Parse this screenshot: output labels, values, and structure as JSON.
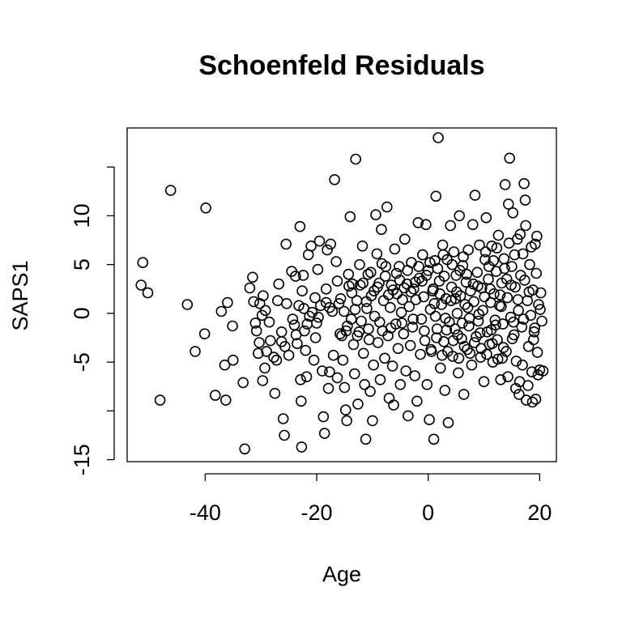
{
  "chart_data": {
    "type": "scatter",
    "title": "Schoenfeld Residuals",
    "xlabel": "Age",
    "ylabel": "SAPS1",
    "xlim": [
      -54,
      23
    ],
    "ylim": [
      -15.2,
      19
    ],
    "x_ticks": [
      -40,
      -20,
      0,
      20
    ],
    "x_tick_labels": [
      "-40",
      "-20",
      "0",
      "20"
    ],
    "y_ticks": [
      -15,
      -10,
      -5,
      0,
      5,
      10,
      15
    ],
    "y_tick_labels": [
      "-15",
      "",
      "-5",
      "0",
      "5",
      "10",
      ""
    ],
    "grid": false,
    "legend": "none",
    "marker": "open-circle",
    "colors": {
      "points": "#000000",
      "background": "#ffffff"
    },
    "points": [
      [
        -51.2,
        5.2
      ],
      [
        -51.5,
        2.9
      ],
      [
        -50.3,
        2.1
      ],
      [
        -48.1,
        -8.9
      ],
      [
        -46.2,
        12.6
      ],
      [
        -43.2,
        0.9
      ],
      [
        -41.8,
        -3.9
      ],
      [
        -40.1,
        -2.1
      ],
      [
        -39.9,
        10.8
      ],
      [
        -38.2,
        -8.4
      ],
      [
        -37.1,
        0.2
      ],
      [
        -36.5,
        -5.3
      ],
      [
        -36.0,
        1.1
      ],
      [
        -36.3,
        -8.9
      ],
      [
        -35.1,
        -1.3
      ],
      [
        -35.0,
        -4.8
      ],
      [
        -33.2,
        -7.1
      ],
      [
        -32.9,
        -13.9
      ],
      [
        -32.0,
        2.6
      ],
      [
        -31.5,
        3.7
      ],
      [
        -31.3,
        1.2
      ],
      [
        -30.8,
        -1.8
      ],
      [
        -30.5,
        -4.1
      ],
      [
        -30.2,
        1.0
      ],
      [
        -29.7,
        -6.9
      ],
      [
        -29.8,
        -0.2
      ],
      [
        -29.6,
        1.8
      ],
      [
        -29.2,
        0.3
      ],
      [
        -29.0,
        -3.9
      ],
      [
        -28.5,
        -0.9
      ],
      [
        -27.5,
        -8.2
      ],
      [
        -27.2,
        -4.8
      ],
      [
        -27.0,
        1.3
      ],
      [
        -26.8,
        3.0
      ],
      [
        -26.3,
        -2.9
      ],
      [
        -26.0,
        -10.8
      ],
      [
        -25.8,
        -12.5
      ],
      [
        -25.4,
        1.0
      ],
      [
        -25.5,
        7.1
      ],
      [
        -25.0,
        -4.3
      ],
      [
        -24.5,
        4.3
      ],
      [
        -24.0,
        -1.2
      ],
      [
        -23.8,
        3.8
      ],
      [
        -23.5,
        -3.1
      ],
      [
        -23.2,
        0.8
      ],
      [
        -23.0,
        8.9
      ],
      [
        -22.9,
        -6.8
      ],
      [
        -22.8,
        -9.0
      ],
      [
        -22.7,
        -13.7
      ],
      [
        -22.6,
        2.3
      ],
      [
        -22.4,
        3.9
      ],
      [
        -22.2,
        -1.8
      ],
      [
        -22.0,
        -3.8
      ],
      [
        -21.8,
        -6.5
      ],
      [
        -21.5,
        6.0
      ],
      [
        -21.3,
        -0.3
      ],
      [
        -21.0,
        6.9
      ],
      [
        -20.8,
        0.1
      ],
      [
        -20.5,
        -4.8
      ],
      [
        -20.2,
        -2.5
      ],
      [
        -20.0,
        -1.0
      ],
      [
        -19.8,
        4.5
      ],
      [
        -19.5,
        7.4
      ],
      [
        -19.3,
        0.8
      ],
      [
        -19.0,
        -5.9
      ],
      [
        -18.8,
        -10.6
      ],
      [
        -18.6,
        -12.3
      ],
      [
        -18.3,
        1.1
      ],
      [
        -18.1,
        6.5
      ],
      [
        -17.9,
        -7.7
      ],
      [
        -17.7,
        -6.0
      ],
      [
        -17.5,
        7.1
      ],
      [
        -17.2,
        0.2
      ],
      [
        -17.0,
        -4.3
      ],
      [
        -16.8,
        13.7
      ],
      [
        -16.5,
        5.3
      ],
      [
        -16.3,
        -6.6
      ],
      [
        -16.0,
        1.0
      ],
      [
        -15.8,
        -2.1
      ],
      [
        -15.5,
        -2.3
      ],
      [
        -15.3,
        -4.8
      ],
      [
        -15.0,
        -7.6
      ],
      [
        -14.8,
        -9.9
      ],
      [
        -14.6,
        -11.0
      ],
      [
        -14.5,
        -1.3
      ],
      [
        -14.2,
        2.8
      ],
      [
        -14.0,
        9.9
      ],
      [
        -13.8,
        -0.6
      ],
      [
        -13.6,
        3.0
      ],
      [
        -13.4,
        -3.2
      ],
      [
        -13.2,
        -6.2
      ],
      [
        -13.0,
        15.8
      ],
      [
        -12.8,
        1.3
      ],
      [
        -12.6,
        -9.3
      ],
      [
        -12.4,
        -1.9
      ],
      [
        -12.2,
        2.9
      ],
      [
        -12.0,
        -0.8
      ],
      [
        -11.8,
        6.9
      ],
      [
        -11.6,
        -4.1
      ],
      [
        -11.4,
        -7.3
      ],
      [
        -11.2,
        -12.9
      ],
      [
        -11.0,
        0.5
      ],
      [
        -10.8,
        4.0
      ],
      [
        -10.6,
        -2.7
      ],
      [
        -10.4,
        -8.0
      ],
      [
        -10.2,
        1.8
      ],
      [
        -10.0,
        -11.0
      ],
      [
        -9.8,
        -5.3
      ],
      [
        -9.6,
        -0.3
      ],
      [
        -9.4,
        10.1
      ],
      [
        -9.2,
        6.1
      ],
      [
        -9.0,
        -3.0
      ],
      [
        -8.8,
        3.1
      ],
      [
        -8.6,
        -6.8
      ],
      [
        -8.4,
        8.6
      ],
      [
        -8.2,
        -1.8
      ],
      [
        -8.0,
        1.3
      ],
      [
        -7.8,
        -4.6
      ],
      [
        -7.6,
        4.8
      ],
      [
        -7.4,
        10.9
      ],
      [
        -7.2,
        -2.3
      ],
      [
        -7.0,
        -8.7
      ],
      [
        -6.8,
        0.6
      ],
      [
        -6.6,
        2.9
      ],
      [
        -6.4,
        -5.4
      ],
      [
        -6.2,
        -9.4
      ],
      [
        -6.0,
        6.6
      ],
      [
        -5.8,
        -1.1
      ],
      [
        -5.6,
        2.0
      ],
      [
        -5.4,
        -3.6
      ],
      [
        -5.2,
        4.8
      ],
      [
        -5.0,
        -7.3
      ],
      [
        -4.8,
        0.1
      ],
      [
        -4.6,
        1.4
      ],
      [
        -4.4,
        -2.1
      ],
      [
        -4.2,
        7.6
      ],
      [
        -4.0,
        -5.9
      ],
      [
        -3.8,
        3.0
      ],
      [
        -3.6,
        -10.5
      ],
      [
        -3.4,
        0.7
      ],
      [
        -3.2,
        -3.3
      ],
      [
        -3.0,
        5.2
      ],
      [
        -2.8,
        -1.4
      ],
      [
        -2.6,
        2.5
      ],
      [
        -2.4,
        -6.4
      ],
      [
        -2.2,
        1.4
      ],
      [
        -2.0,
        -9.0
      ],
      [
        -1.8,
        9.3
      ],
      [
        -1.6,
        3.6
      ],
      [
        -1.4,
        -4.2
      ],
      [
        -1.2,
        -0.6
      ],
      [
        -1.0,
        6.0
      ],
      [
        -0.8,
        1.7
      ],
      [
        -0.6,
        -2.8
      ],
      [
        -0.4,
        9.1
      ],
      [
        -0.2,
        -7.3
      ],
      [
        0.0,
        4.4
      ],
      [
        0.2,
        -10.9
      ],
      [
        0.4,
        0.4
      ],
      [
        0.6,
        -3.9
      ],
      [
        0.8,
        2.3
      ],
      [
        1.0,
        -12.9
      ],
      [
        1.2,
        5.4
      ],
      [
        1.4,
        12.0
      ],
      [
        1.6,
        -1.6
      ],
      [
        1.8,
        18.0
      ],
      [
        2.0,
        3.3
      ],
      [
        2.2,
        -5.6
      ],
      [
        2.4,
        0.9
      ],
      [
        2.6,
        7.0
      ],
      [
        2.8,
        -2.9
      ],
      [
        3.0,
        -7.9
      ],
      [
        3.2,
        1.5
      ],
      [
        3.4,
        5.5
      ],
      [
        3.6,
        -11.2
      ],
      [
        3.8,
        -0.9
      ],
      [
        4.0,
        9.0
      ],
      [
        4.2,
        2.7
      ],
      [
        4.4,
        -4.4
      ],
      [
        4.6,
        6.3
      ],
      [
        4.8,
        -1.6
      ],
      [
        5.0,
        3.9
      ],
      [
        5.2,
        0.0
      ],
      [
        5.4,
        -6.1
      ],
      [
        5.6,
        10.0
      ],
      [
        5.8,
        1.8
      ],
      [
        6.0,
        -2.6
      ],
      [
        6.2,
        4.9
      ],
      [
        6.4,
        -8.3
      ],
      [
        6.6,
        0.9
      ],
      [
        6.8,
        3.2
      ],
      [
        7.0,
        -3.7
      ],
      [
        7.2,
        6.5
      ],
      [
        7.4,
        -0.5
      ],
      [
        7.6,
        2.3
      ],
      [
        7.8,
        -5.3
      ],
      [
        8.0,
        9.1
      ],
      [
        8.2,
        1.2
      ],
      [
        8.4,
        12.1
      ],
      [
        8.6,
        -2.4
      ],
      [
        8.8,
        4.2
      ],
      [
        9.0,
        -0.8
      ],
      [
        9.2,
        7.0
      ],
      [
        9.4,
        -4.5
      ],
      [
        9.6,
        2.6
      ],
      [
        9.8,
        0.3
      ],
      [
        10.0,
        -7.0
      ],
      [
        10.2,
        5.5
      ],
      [
        10.4,
        9.8
      ],
      [
        10.6,
        -1.9
      ],
      [
        10.8,
        3.5
      ],
      [
        11.0,
        -3.2
      ],
      [
        11.2,
        1.1
      ],
      [
        11.4,
        6.9
      ],
      [
        11.6,
        -5.0
      ],
      [
        11.8,
        2.0
      ],
      [
        12.0,
        -0.7
      ],
      [
        12.2,
        4.3
      ],
      [
        12.4,
        -2.7
      ],
      [
        12.6,
        8.0
      ],
      [
        12.8,
        0.8
      ],
      [
        13.0,
        -6.8
      ],
      [
        13.2,
        3.1
      ],
      [
        13.4,
        -1.1
      ],
      [
        13.6,
        5.6
      ],
      [
        13.8,
        13.2
      ],
      [
        14.0,
        -3.9
      ],
      [
        14.2,
        1.6
      ],
      [
        14.4,
        11.2
      ],
      [
        14.6,
        15.9
      ],
      [
        14.8,
        -0.4
      ],
      [
        15.0,
        4.8
      ],
      [
        15.2,
        10.3
      ],
      [
        15.4,
        -2.2
      ],
      [
        15.6,
        2.7
      ],
      [
        15.8,
        -4.9
      ],
      [
        16.0,
        7.6
      ],
      [
        16.2,
        0.3
      ],
      [
        16.4,
        -7.0
      ],
      [
        16.6,
        3.9
      ],
      [
        16.8,
        -1.4
      ],
      [
        17.0,
        6.1
      ],
      [
        17.2,
        13.3
      ],
      [
        17.4,
        11.6
      ],
      [
        17.6,
        -8.9
      ],
      [
        17.8,
        1.3
      ],
      [
        18.0,
        -3.4
      ],
      [
        18.2,
        5.0
      ],
      [
        18.4,
        -0.2
      ],
      [
        18.6,
        -6.0
      ],
      [
        18.8,
        2.4
      ],
      [
        19.0,
        -1.9
      ],
      [
        19.2,
        7.1
      ],
      [
        19.4,
        4.1
      ],
      [
        19.6,
        -4.0
      ],
      [
        19.8,
        0.9
      ],
      [
        20.0,
        -5.8
      ],
      [
        20.2,
        2.1
      ],
      [
        20.4,
        -0.8
      ],
      [
        20.6,
        -5.9
      ],
      [
        19.3,
        -8.8
      ],
      [
        18.9,
        -2.7
      ],
      [
        17.3,
        3.4
      ],
      [
        16.9,
        -5.3
      ],
      [
        15.3,
        -0.9
      ],
      [
        14.9,
        2.9
      ],
      [
        13.3,
        -4.6
      ],
      [
        12.9,
        1.9
      ],
      [
        11.3,
        -1.7
      ],
      [
        10.9,
        4.8
      ],
      [
        9.3,
        -2.0
      ],
      [
        8.9,
        2.8
      ],
      [
        7.3,
        -1.3
      ],
      [
        6.9,
        4.0
      ],
      [
        5.3,
        -2.2
      ],
      [
        4.9,
        1.5
      ],
      [
        3.3,
        -1.7
      ],
      [
        2.9,
        3.8
      ],
      [
        1.3,
        -0.3
      ],
      [
        0.9,
        2.5
      ],
      [
        -0.7,
        -1.8
      ],
      [
        -1.1,
        3.3
      ],
      [
        -2.7,
        -0.6
      ],
      [
        -3.1,
        2.2
      ],
      [
        -4.7,
        -1.0
      ],
      [
        -5.1,
        3.4
      ],
      [
        -6.7,
        -1.5
      ],
      [
        -7.1,
        1.9
      ],
      [
        -8.7,
        -0.9
      ],
      [
        -9.1,
        2.7
      ],
      [
        -10.7,
        -1.6
      ],
      [
        -11.1,
        1.2
      ],
      [
        -12.7,
        -2.3
      ],
      [
        -13.1,
        0.4
      ],
      [
        -14.7,
        -1.8
      ],
      [
        -15.1,
        0.2
      ],
      [
        1.1,
        1.0
      ],
      [
        2.1,
        2.0
      ],
      [
        3.1,
        -0.5
      ],
      [
        4.1,
        1.3
      ],
      [
        5.1,
        2.2
      ],
      [
        6.1,
        -1.0
      ],
      [
        7.1,
        0.6
      ],
      [
        8.1,
        3.0
      ],
      [
        9.1,
        -0.1
      ],
      [
        10.1,
        1.7
      ],
      [
        11.1,
        2.5
      ],
      [
        12.1,
        -1.2
      ],
      [
        13.1,
        0.7
      ],
      [
        14.1,
        3.5
      ],
      [
        15.1,
        -2.6
      ],
      [
        16.1,
        1.4
      ],
      [
        17.1,
        -0.6
      ],
      [
        18.1,
        2.2
      ],
      [
        19.1,
        -1.5
      ],
      [
        20.1,
        0.4
      ],
      [
        8.3,
        -3.0
      ],
      [
        9.5,
        -3.6
      ],
      [
        10.5,
        -4.2
      ],
      [
        11.5,
        -3.1
      ],
      [
        12.5,
        -4.7
      ],
      [
        13.5,
        -3.5
      ],
      [
        7.5,
        -4.1
      ],
      [
        6.5,
        -3.4
      ],
      [
        5.5,
        -4.6
      ],
      [
        4.5,
        -2.8
      ],
      [
        3.5,
        -3.9
      ],
      [
        2.5,
        -4.3
      ],
      [
        1.5,
        -2.5
      ],
      [
        0.5,
        -3.7
      ],
      [
        10.3,
        6.3
      ],
      [
        11.7,
        5.4
      ],
      [
        12.3,
        6.7
      ],
      [
        13.7,
        4.6
      ],
      [
        6.3,
        5.8
      ],
      [
        5.7,
        4.4
      ],
      [
        4.3,
        5.0
      ],
      [
        2.7,
        6.0
      ],
      [
        1.7,
        4.6
      ],
      [
        0.3,
        5.2
      ],
      [
        -0.3,
        3.9
      ],
      [
        -1.7,
        4.8
      ],
      [
        -2.3,
        3.2
      ],
      [
        -3.7,
        4.4
      ],
      [
        -4.3,
        2.6
      ],
      [
        -5.7,
        4.1
      ],
      [
        -6.3,
        2.4
      ],
      [
        -7.7,
        3.8
      ],
      [
        -8.3,
        5.1
      ],
      [
        -9.7,
        2.3
      ],
      [
        -10.3,
        4.2
      ],
      [
        -11.7,
        3.1
      ],
      [
        -12.3,
        5.0
      ],
      [
        -13.7,
        2.1
      ],
      [
        -14.3,
        4.0
      ],
      [
        -15.7,
        1.5
      ],
      [
        -16.3,
        3.3
      ],
      [
        -17.7,
        0.6
      ],
      [
        -18.3,
        2.5
      ],
      [
        -19.7,
        -0.4
      ],
      [
        -20.3,
        1.6
      ],
      [
        -21.7,
        -1.1
      ],
      [
        -22.3,
        0.5
      ],
      [
        -23.7,
        -2.2
      ],
      [
        -24.3,
        -0.6
      ],
      [
        -25.7,
        -3.4
      ],
      [
        -26.3,
        -1.9
      ],
      [
        -27.7,
        -4.5
      ],
      [
        -28.3,
        -2.8
      ],
      [
        -29.3,
        -5.6
      ],
      [
        -30.3,
        -3.0
      ],
      [
        -31.0,
        -1.0
      ],
      [
        16.5,
        8.1
      ],
      [
        17.5,
        9.0
      ],
      [
        18.5,
        6.8
      ],
      [
        19.5,
        7.9
      ],
      [
        15.5,
        6.0
      ],
      [
        14.5,
        7.2
      ],
      [
        16.3,
        -8.3
      ],
      [
        17.9,
        -7.4
      ],
      [
        18.7,
        -9.1
      ],
      [
        19.7,
        -6.3
      ],
      [
        15.7,
        -7.7
      ],
      [
        14.3,
        -6.5
      ]
    ]
  }
}
